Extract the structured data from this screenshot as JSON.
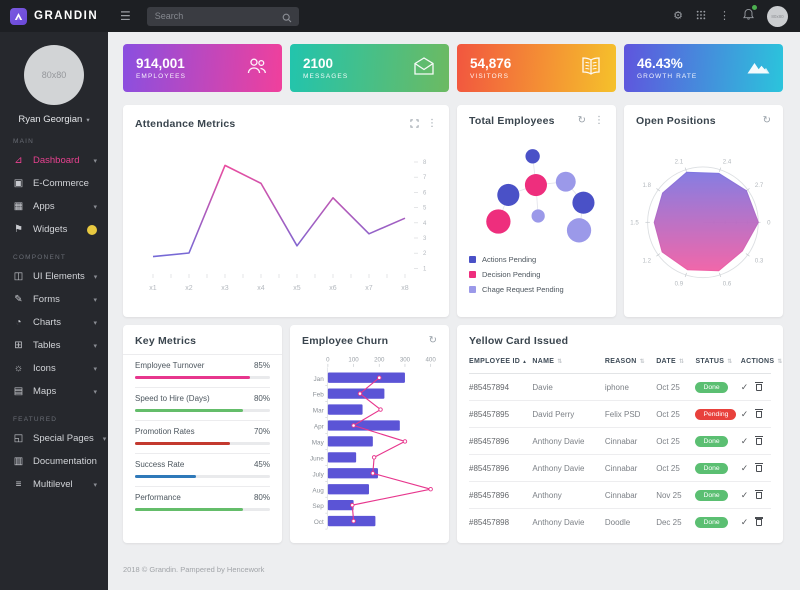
{
  "navbar": {
    "brand": "GRANDIN",
    "search_placeholder": "Search"
  },
  "user": {
    "name": "Ryan Georgian",
    "avatar_text": "80x80"
  },
  "icons": {
    "hamburger": "☰",
    "kebab": "⋮",
    "refresh": "↻",
    "caret_down": "▾",
    "check": "✓",
    "sort": "⇅",
    "sort_asc": "▴",
    "gear": "⚙"
  },
  "sidebar": {
    "sections": [
      {
        "label": "MAIN",
        "items": [
          {
            "name": "dashboard",
            "label": "Dashboard",
            "icon": "⊿",
            "active": true,
            "caret": true
          },
          {
            "name": "ecommerce",
            "label": "E-Commerce",
            "icon": "▣",
            "badge": "green"
          },
          {
            "name": "apps",
            "label": "Apps",
            "icon": "▦",
            "caret": true
          },
          {
            "name": "widgets",
            "label": "Widgets",
            "icon": "⚑",
            "badge": "yellow"
          }
        ]
      },
      {
        "label": "COMPONENT",
        "items": [
          {
            "name": "ui-elements",
            "label": "UI Elements",
            "icon": "◫",
            "caret": true
          },
          {
            "name": "forms",
            "label": "Forms",
            "icon": "✎",
            "caret": true
          },
          {
            "name": "charts",
            "label": "Charts",
            "icon": "◔",
            "caret": true
          },
          {
            "name": "tables",
            "label": "Tables",
            "icon": "⊞",
            "caret": true
          },
          {
            "name": "icons",
            "label": "Icons",
            "icon": "☼",
            "caret": true
          },
          {
            "name": "maps",
            "label": "Maps",
            "icon": "▤",
            "caret": true
          }
        ]
      },
      {
        "label": "FEATURED",
        "items": [
          {
            "name": "special-pages",
            "label": "Special Pages",
            "icon": "◱",
            "caret": true
          },
          {
            "name": "documentation",
            "label": "Documentation",
            "icon": "▥"
          },
          {
            "name": "multilevel",
            "label": "Multilevel",
            "icon": "≡",
            "caret": true
          }
        ]
      }
    ]
  },
  "stat_cards": [
    {
      "value": "914,001",
      "label": "EMPLOYEES",
      "icon": "users-icon",
      "gradient": [
        "#8a4fe0",
        "#f0409c"
      ]
    },
    {
      "value": "2100",
      "label": "MESSAGES",
      "icon": "mail-icon",
      "gradient": [
        "#22c4ad",
        "#6cba62"
      ]
    },
    {
      "value": "54,876",
      "label": "VISITORS",
      "icon": "book-icon",
      "gradient": [
        "#f2563f",
        "#f5c12b"
      ]
    },
    {
      "value": "46.43%",
      "label": "GROWTH RATE",
      "icon": "mountain-icon",
      "gradient": [
        "#5f55dd",
        "#2bc4dc"
      ]
    }
  ],
  "charts": {
    "attendance": {
      "title": "Attendance Metrics",
      "type": "line",
      "x": [
        "x1",
        "x2",
        "x3",
        "x4",
        "x5",
        "x6",
        "x7",
        "x8"
      ],
      "values": [
        1.2,
        1.5,
        8.8,
        7.3,
        2.1,
        6.1,
        3.1,
        4.4
      ],
      "ylim": [
        0,
        10
      ],
      "y_ticks_right": [
        "8",
        "7",
        "6",
        "5",
        "4",
        "3",
        "2",
        "1"
      ],
      "line_gradient": [
        "#ef4b9d",
        "#6f6bd9"
      ]
    },
    "total_employees": {
      "title": "Total Employees",
      "type": "bubble",
      "bubbles": [
        {
          "x": 64,
          "y": 22,
          "r": 6.5,
          "series": 0
        },
        {
          "x": 67,
          "y": 48,
          "r": 10,
          "series": 1
        },
        {
          "x": 94,
          "y": 45,
          "r": 9,
          "series": 2
        },
        {
          "x": 42,
          "y": 57,
          "r": 10,
          "series": 0
        },
        {
          "x": 110,
          "y": 64,
          "r": 10,
          "series": 0
        },
        {
          "x": 33,
          "y": 81,
          "r": 11,
          "series": 1
        },
        {
          "x": 69,
          "y": 76,
          "r": 6,
          "series": 2
        },
        {
          "x": 106,
          "y": 89,
          "r": 11,
          "series": 2
        }
      ],
      "links": [
        [
          0,
          1
        ],
        [
          1,
          2
        ],
        [
          1,
          3
        ],
        [
          1,
          6
        ],
        [
          2,
          4
        ],
        [
          4,
          7
        ],
        [
          3,
          5
        ]
      ],
      "legend": [
        {
          "label": "Actions Pending",
          "color": "#4a51c7"
        },
        {
          "label": "Decision Pending",
          "color": "#ee2e7d"
        },
        {
          "label": "Chage Request Pending",
          "color": "#9b99e9"
        }
      ]
    },
    "open_positions": {
      "title": "Open Positions",
      "type": "polar",
      "angle_labels": [
        "0",
        "0.3",
        "0.6",
        "0.9",
        "1.2",
        "1.5",
        "1.8",
        "2.1",
        "2.4",
        "2.7"
      ],
      "values": [
        1.0,
        0.88,
        0.92,
        0.9,
        0.91,
        0.88,
        0.9,
        0.95,
        0.93,
        0.97
      ],
      "gradient": [
        "#8076e0",
        "#f05fa5"
      ]
    },
    "key_metrics": {
      "title": "Key Metrics",
      "metrics": [
        {
          "label": "Employee Turnover",
          "value": "85%",
          "pct": 85,
          "color": "#e7368d"
        },
        {
          "label": "Speed to Hire (Days)",
          "value": "80%",
          "pct": 80,
          "color": "#64bd6a"
        },
        {
          "label": "Promotion Rates",
          "value": "70%",
          "pct": 70,
          "color": "#c3392f"
        },
        {
          "label": "Success Rate",
          "value": "45%",
          "pct": 45,
          "color": "#2f79b9"
        },
        {
          "label": "Performance",
          "value": "80%",
          "pct": 80,
          "color": "#64bd6a"
        }
      ]
    },
    "employee_churn": {
      "title": "Employee Churn",
      "type": "bar+line",
      "categories": [
        "Jan",
        "Feb",
        "Mar",
        "Apr",
        "May",
        "June",
        "July",
        "Aug",
        "Sep",
        "Oct"
      ],
      "bar_values": [
        300,
        220,
        135,
        280,
        175,
        110,
        195,
        160,
        100,
        185
      ],
      "line_values": [
        200,
        125,
        205,
        100,
        300,
        180,
        175,
        400,
        95,
        100
      ],
      "x_ticks": [
        0,
        100,
        200,
        300,
        400
      ],
      "bar_color": "#5b54d6",
      "line_color": "#e7368d"
    }
  },
  "table": {
    "title": "Yellow Card Issued",
    "columns": [
      "EMPLOYEE ID",
      "NAME",
      "REASON",
      "DATE",
      "STATUS",
      "ACTIONS"
    ],
    "rows": [
      {
        "id": "#85457894",
        "name": "Davie",
        "reason": "iphone",
        "date": "Oct 25",
        "status": "Done"
      },
      {
        "id": "#85457895",
        "name": "David Perry",
        "reason": "Felix PSD",
        "date": "Oct 25",
        "status": "Pending"
      },
      {
        "id": "#85457896",
        "name": "Anthony Davie",
        "reason": "Cinnabar",
        "date": "Oct 25",
        "status": "Done"
      },
      {
        "id": "#85457896",
        "name": "Anthony Davie",
        "reason": "Cinnabar",
        "date": "Oct 25",
        "status": "Done"
      },
      {
        "id": "#85457896",
        "name": "Anthony",
        "reason": "Cinnabar",
        "date": "Nov 25",
        "status": "Done"
      },
      {
        "id": "#85457898",
        "name": "Anthony Davie",
        "reason": "Doodle",
        "date": "Dec 25",
        "status": "Done"
      }
    ],
    "status_colors": {
      "Done": "#5bbf72",
      "Pending": "#e8413c"
    }
  },
  "footer": {
    "text": "2018 © Grandin. Pampered by Hencework"
  }
}
